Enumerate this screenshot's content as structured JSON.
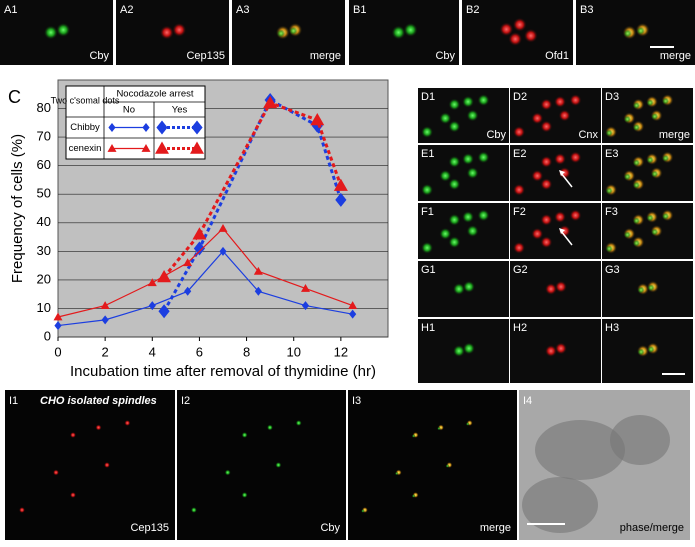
{
  "top_row": [
    {
      "id": "A1",
      "stain": "Cby"
    },
    {
      "id": "A2",
      "stain": "Cep135"
    },
    {
      "id": "A3",
      "stain": "merge"
    },
    {
      "id": "B1",
      "stain": "Cby"
    },
    {
      "id": "B2",
      "stain": "Ofd1"
    },
    {
      "id": "B3",
      "stain": "merge"
    }
  ],
  "panel_c_label": "C",
  "grid_panels": [
    [
      "D1",
      "D2",
      "D3"
    ],
    [
      "E1",
      "E2",
      "E3"
    ],
    [
      "F1",
      "F2",
      "F3"
    ],
    [
      "G1",
      "G2",
      "G3"
    ],
    [
      "H1",
      "H2",
      "H3"
    ]
  ],
  "grid_stains": [
    "Cby",
    "Cnx",
    "merge"
  ],
  "bottom_title": "CHO isolated spindles",
  "bottom_row": [
    {
      "id": "I1",
      "stain": "Cep135"
    },
    {
      "id": "I2",
      "stain": "Cby"
    },
    {
      "id": "I3",
      "stain": "merge"
    },
    {
      "id": "I4",
      "stain": "phase/merge"
    }
  ],
  "chart_data": {
    "type": "line",
    "x_label": "Incubation time after removal of thymidine (hr)",
    "y_label": "Frequency of cells (%)",
    "xlim": [
      0,
      14
    ],
    "xticks": [
      0,
      2,
      4,
      6,
      8,
      10,
      12
    ],
    "ylim": [
      0,
      90
    ],
    "yticks": [
      0,
      10,
      20,
      30,
      40,
      50,
      60,
      70,
      80
    ],
    "grid": true,
    "legend": {
      "title": "Two c'somal dots",
      "header": "Nocodazole arrest",
      "columns": [
        "No",
        "Yes"
      ],
      "rows": [
        "Chibby",
        "cenexin"
      ]
    },
    "series": [
      {
        "color": "#1c3ee0",
        "style": "solid",
        "marker": "diamond",
        "x": [
          0,
          2,
          4,
          5.5,
          7,
          8.5,
          10.5,
          12.5
        ],
        "values": [
          4,
          6,
          11,
          16,
          30,
          16,
          11,
          8
        ]
      },
      {
        "color": "#1c3ee0",
        "style": "dotted",
        "marker": "diamond",
        "x": [
          4.5,
          6,
          9,
          11,
          12
        ],
        "values": [
          9,
          31,
          83,
          74,
          48
        ]
      },
      {
        "color": "#e31a1c",
        "style": "solid",
        "marker": "triangle",
        "x": [
          0,
          2,
          4,
          5.5,
          7,
          8.5,
          10.5,
          12.5
        ],
        "values": [
          7,
          11,
          19,
          26,
          38,
          23,
          17,
          11
        ]
      },
      {
        "color": "#e31a1c",
        "style": "dotted",
        "marker": "triangle",
        "x": [
          4.5,
          6,
          9,
          11,
          12
        ],
        "values": [
          21,
          36,
          82,
          76,
          53
        ]
      }
    ]
  }
}
